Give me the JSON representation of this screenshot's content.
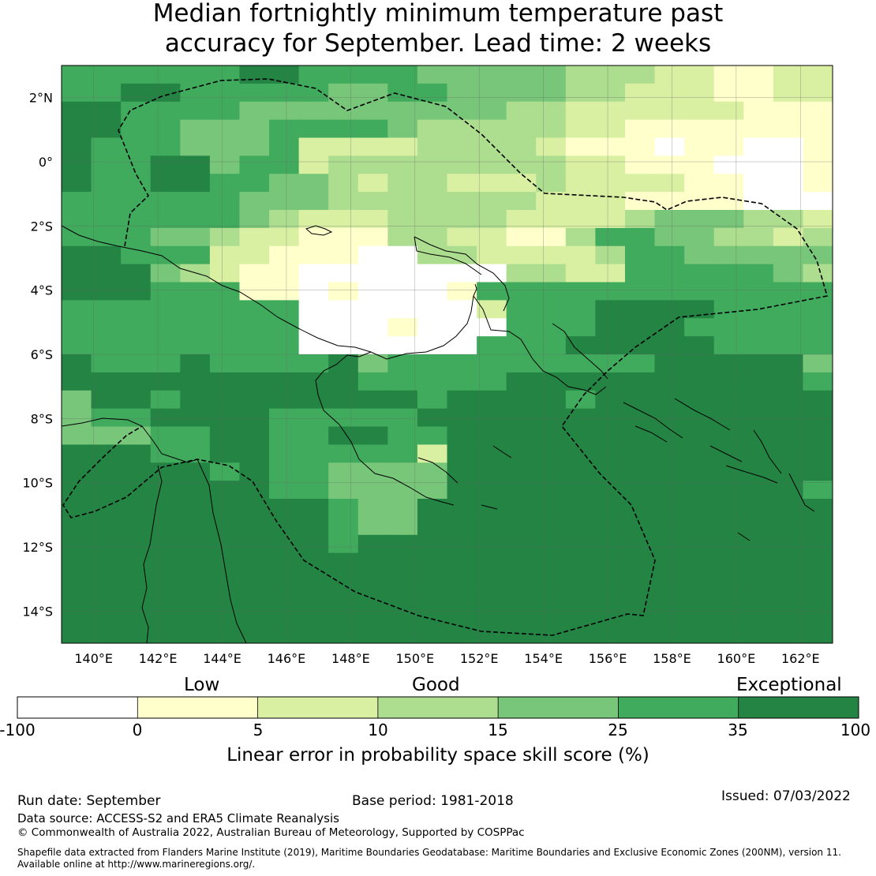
{
  "title": {
    "line1": "Median fortnightly minimum temperature past",
    "line2": "accuracy for September. Lead time: 2 weeks"
  },
  "map": {
    "lon_range": [
      139,
      163
    ],
    "lat_range": [
      -15,
      3
    ],
    "cell_size_deg": 0.8,
    "lon_ticks": [
      {
        "value": 140,
        "label": "140°E"
      },
      {
        "value": 142,
        "label": "142°E"
      },
      {
        "value": 144,
        "label": "144°E"
      },
      {
        "value": 146,
        "label": "146°E"
      },
      {
        "value": 148,
        "label": "148°E"
      },
      {
        "value": 150,
        "label": "150°E"
      },
      {
        "value": 152,
        "label": "152°E"
      },
      {
        "value": 154,
        "label": "154°E"
      },
      {
        "value": 156,
        "label": "156°E"
      },
      {
        "value": 158,
        "label": "158°E"
      },
      {
        "value": 160,
        "label": "160°E"
      },
      {
        "value": 162,
        "label": "162°E"
      }
    ],
    "lat_ticks": [
      {
        "value": 2,
        "label": "2°N"
      },
      {
        "value": 0,
        "label": "0°"
      },
      {
        "value": -2,
        "label": "2°S"
      },
      {
        "value": -4,
        "label": "4°S"
      },
      {
        "value": -6,
        "label": "6°S"
      },
      {
        "value": -8,
        "label": "8°S"
      },
      {
        "value": -10,
        "label": "10°S"
      },
      {
        "value": -12,
        "label": "12°S"
      },
      {
        "value": -14,
        "label": "14°S"
      }
    ]
  },
  "chart_data": {
    "type": "heatmap",
    "title": "Median fortnightly minimum temperature past accuracy for September. Lead time: 2 weeks",
    "variable": "Linear error in probability space skill score (%)",
    "x_axis": {
      "name": "longitude",
      "range": [
        139,
        163
      ],
      "units": "°E"
    },
    "y_axis": {
      "name": "latitude",
      "range": [
        -15,
        3
      ],
      "units": "°"
    },
    "class_colors": [
      "#ffffff",
      "#ffffcc",
      "#d9f0a3",
      "#addd8e",
      "#78c679",
      "#41ab5d",
      "#238443"
    ],
    "grid_rows_north_to_south": [
      "55555566555544444333221122",
      "55665555544554444332221122",
      "66555544444444433222222111",
      "66554445555433333221111111",
      "65554445222233332111011001",
      "65566455233333333221110001",
      "65566554432332223222211001",
      "55555544433333332221111000",
      "55555543222333322223444332",
      "55544322111332211355443323",
      "66555221110033222235544444",
      "66643211000000033225555543",
      "66655511010001555555555555",
      "55555555000000255566665555",
      "55555555000100055566655555",
      "55555555000000555666665555",
      "65556555564555555555666664",
      "66666666665555566666666665",
      "46656666666656666566666666",
      "45566665555566666666666666",
      "44455665566556666666666666",
      "66655665555526666666666666",
      "66666565544446666666666666",
      "66666665544446666666666665",
      "66666666654466666666666666",
      "66666666654466666666666666",
      "66666666656666666666666666",
      "66666666666666666666666666",
      "66666666666666666666666666",
      "66666666666666666666666666",
      "66666666666666666666666666",
      "66666666666666666666666666"
    ],
    "colorbar": {
      "bounds": [
        -100,
        0,
        5,
        10,
        15,
        25,
        35,
        100
      ],
      "colors": [
        "#ffffff",
        "#ffffcc",
        "#d9f0a3",
        "#addd8e",
        "#78c679",
        "#41ab5d",
        "#238443"
      ],
      "category_labels": [
        "Low",
        "Good",
        "Exceptional"
      ]
    }
  },
  "colorbar": {
    "categories": {
      "low": "Low",
      "good": "Good",
      "exceptional": "Exceptional"
    },
    "ticks": [
      "-100",
      "0",
      "5",
      "10",
      "15",
      "25",
      "35",
      "100"
    ],
    "label": "Linear error in probability space skill score (%)"
  },
  "footer": {
    "run_date": "Run date: September",
    "base_period": "Base period: 1981-2018",
    "issued": "Issued: 07/03/2022",
    "data_source": "Data source: ACCESS-S2 and ERA5 Climate Reanalysis",
    "copyright": "© Commonwealth of Australia 2022, Australian Bureau of Meteorology, Supported by COSPPac",
    "shapefile_line1": "Shapefile data extracted from Flanders Marine Institute (2019), Maritime Boundaries Geodatabase: Maritime Boundaries and Exclusive Economic Zones (200NM), version 11.",
    "shapefile_line2": "Available online at http://www.marineregions.org/."
  }
}
